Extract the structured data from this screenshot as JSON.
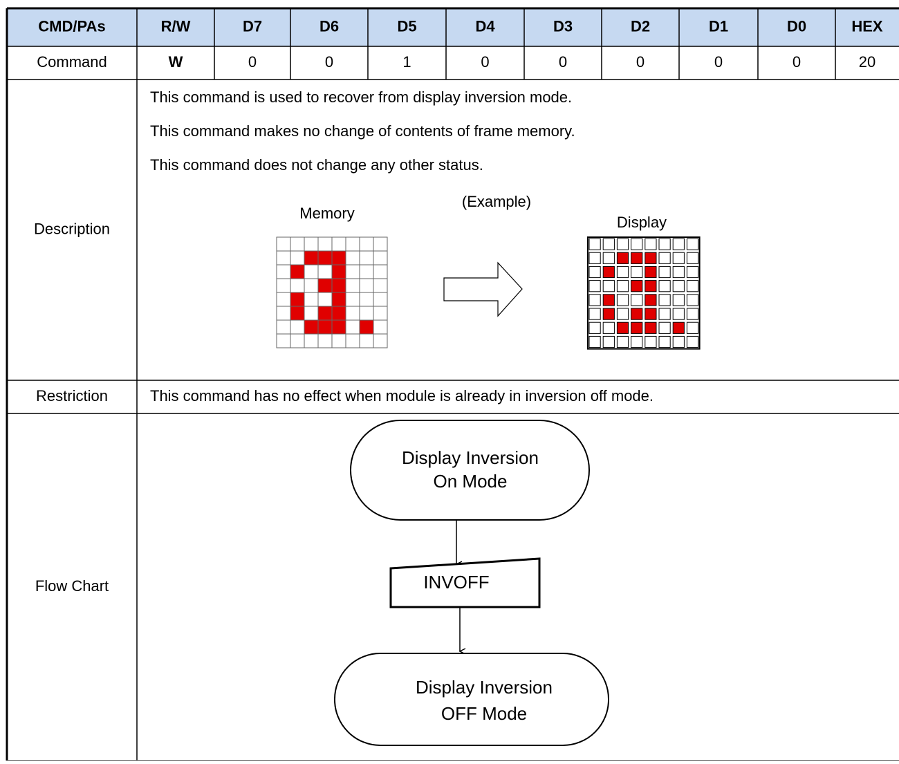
{
  "table": {
    "header": [
      "CMD/PAs",
      "R/W",
      "D7",
      "D6",
      "D5",
      "D4",
      "D3",
      "D2",
      "D1",
      "D0",
      "HEX"
    ],
    "command": {
      "label": "Command",
      "values": [
        "W",
        "0",
        "0",
        "1",
        "0",
        "0",
        "0",
        "0",
        "0",
        "20"
      ]
    },
    "description": {
      "label": "Description",
      "lines": [
        "This command is used to recover from display inversion mode.",
        "This command makes no change of contents of frame memory.",
        "This command does not change any other status."
      ],
      "example": {
        "caption": "(Example)",
        "memory": "Memory",
        "display": "Display"
      }
    },
    "restriction": {
      "label": "Restriction",
      "text": "This command has no effect when module is already in inversion off mode."
    },
    "flow_chart": {
      "label": "Flow Chart",
      "nodes": [
        {
          "lines": [
            "Display Inversion",
            "On Mode"
          ]
        },
        {
          "lines": [
            "INVOFF"
          ]
        },
        {
          "lines": [
            "Display Inversion",
            "OFF Mode"
          ]
        }
      ]
    }
  }
}
